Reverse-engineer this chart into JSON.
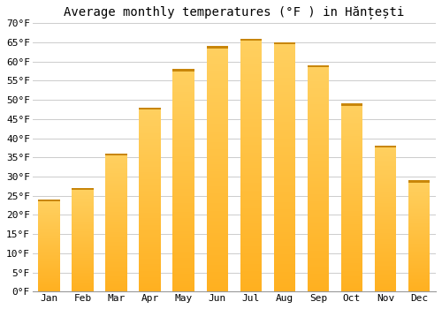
{
  "title": "Average monthly temperatures (°F ) in Hănțești",
  "months": [
    "Jan",
    "Feb",
    "Mar",
    "Apr",
    "May",
    "Jun",
    "Jul",
    "Aug",
    "Sep",
    "Oct",
    "Nov",
    "Dec"
  ],
  "values": [
    24,
    27,
    36,
    48,
    58,
    64,
    66,
    65,
    59,
    49,
    38,
    29
  ],
  "bar_color_bottom": "#FFB020",
  "bar_color_top": "#FFD060",
  "bar_edge_top": "#C8860A",
  "ylim": [
    0,
    70
  ],
  "yticks": [
    0,
    5,
    10,
    15,
    20,
    25,
    30,
    35,
    40,
    45,
    50,
    55,
    60,
    65,
    70
  ],
  "ytick_labels": [
    "0°F",
    "5°F",
    "10°F",
    "15°F",
    "20°F",
    "25°F",
    "30°F",
    "35°F",
    "40°F",
    "45°F",
    "50°F",
    "55°F",
    "60°F",
    "65°F",
    "70°F"
  ],
  "bg_color": "#ffffff",
  "grid_color": "#cccccc",
  "title_fontsize": 10,
  "tick_fontsize": 8
}
